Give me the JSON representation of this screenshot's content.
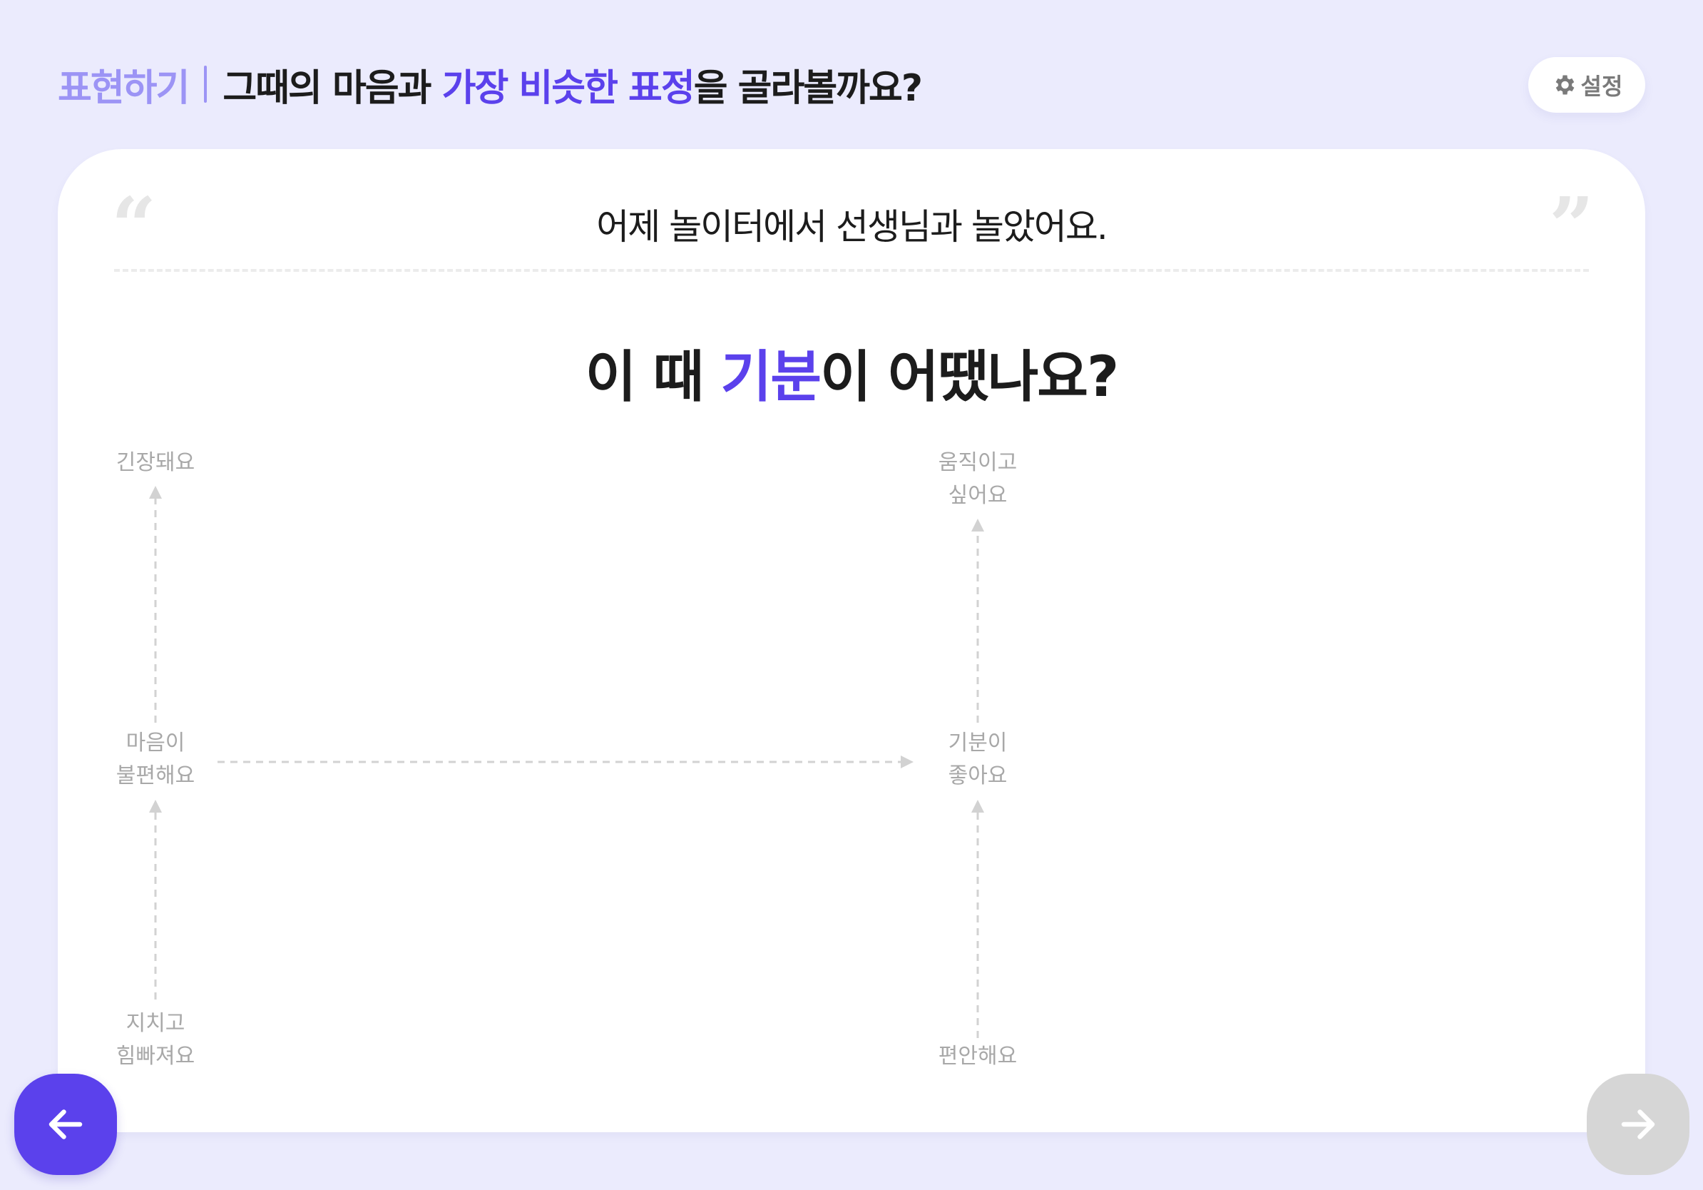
{
  "header": {
    "breadcrumb": "표현하기",
    "title_parts": [
      "그때의 마음과 ",
      "가장 비슷한 표정",
      "을 골라볼까요?"
    ],
    "settings_label": "설정"
  },
  "card": {
    "sentence": "어제 놀이터에서 선생님과 놀았어요.",
    "question_parts": [
      "이 때 ",
      "기분",
      "이 어땠나요?"
    ],
    "open_quote": "“",
    "close_quote": "”"
  },
  "mood_map": {
    "left": {
      "top": "긴장돼요",
      "middle": [
        "마음이",
        "불편해요"
      ],
      "bottom": [
        "지치고",
        "힘빠져요"
      ]
    },
    "right": {
      "top": [
        "움직이고",
        "싶어요"
      ],
      "middle": [
        "기분이",
        "좋아요"
      ],
      "bottom": "편안해요"
    }
  },
  "nav": {
    "back_icon": "arrow-left-icon",
    "next_icon": "arrow-right-icon"
  },
  "colors": {
    "background": "#ebebfd",
    "accent": "#5b41ec",
    "accent_light": "#9c94f5",
    "disabled": "#d6d6d6"
  }
}
